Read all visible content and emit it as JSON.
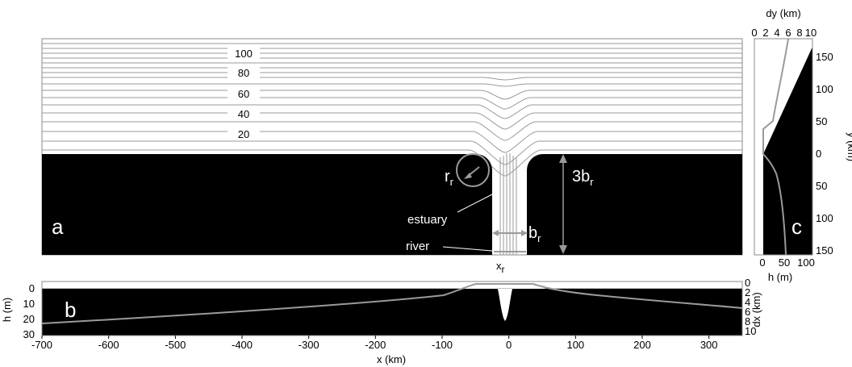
{
  "panel_a": {
    "letter": "a",
    "contour_labels": [
      "100",
      "80",
      "60",
      "40",
      "20"
    ],
    "annotations": {
      "rr_main": "r",
      "rr_sub": "r",
      "threebr_main": "3b",
      "threebr_sub": "r",
      "br_main": "b",
      "br_sub": "r",
      "xr_main": "x",
      "xr_sub": "r",
      "estuary": "estuary",
      "river": "river"
    }
  },
  "panel_b": {
    "letter": "b",
    "left_axis_label": "h (m)",
    "left_ticks": [
      "0",
      "10",
      "20",
      "30"
    ],
    "right_axis_label": "dx (km)",
    "right_ticks": [
      "0",
      "2",
      "4",
      "6",
      "8",
      "10"
    ],
    "x_axis_label": "x (km)",
    "x_ticks": [
      "-700",
      "-600",
      "-500",
      "-400",
      "-300",
      "-200",
      "-100",
      "0",
      "100",
      "200",
      "300"
    ]
  },
  "panel_c": {
    "letter": "c",
    "top_axis_label": "dy (km)",
    "top_ticks": [
      "0",
      "2",
      "4",
      "6",
      "8",
      "10"
    ],
    "right_axis_label": "y (km)",
    "right_ticks": [
      "150",
      "100",
      "50",
      "0",
      "50",
      "100",
      "150"
    ],
    "bottom_axis_label": "h (m)",
    "bottom_ticks": [
      "0",
      "50",
      "100"
    ]
  },
  "colors": {
    "land": "#000000",
    "line": "#9a9a9a",
    "text_light": "#ffffff"
  }
}
